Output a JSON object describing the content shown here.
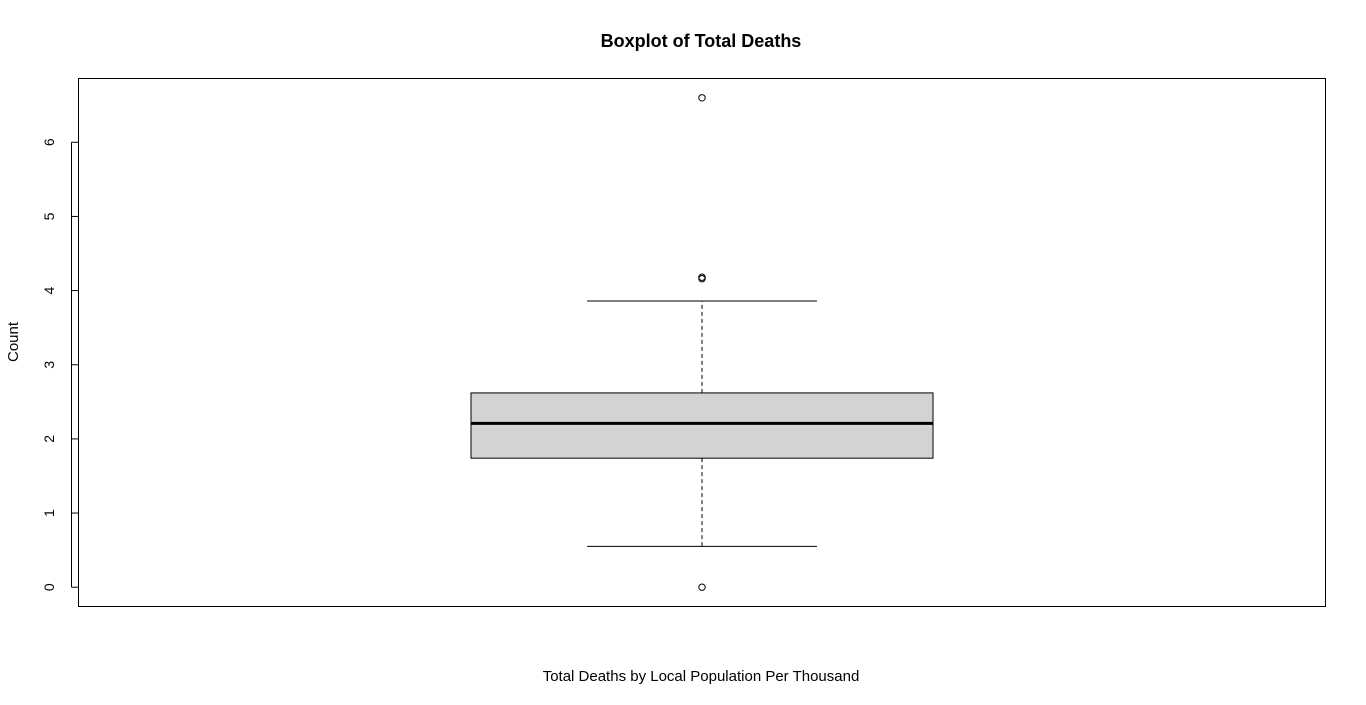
{
  "chart_data": {
    "type": "boxplot",
    "title": "Boxplot of Total Deaths",
    "xlabel": "Total Deaths by Local Population Per Thousand",
    "ylabel": "Count",
    "ylim": [
      -0.26,
      6.86
    ],
    "yticks": [
      0,
      1,
      2,
      3,
      4,
      5,
      6
    ],
    "ytick_labels": [
      "0",
      "1",
      "2",
      "3",
      "4",
      "5",
      "6"
    ],
    "grid": false,
    "legend": "none",
    "box": {
      "whisker_low": 0.55,
      "q1": 1.74,
      "median": 2.21,
      "q3": 2.62,
      "whisker_high": 3.86,
      "outliers": [
        0.0,
        4.16,
        4.18,
        6.6
      ]
    },
    "colors": {
      "box_fill": "#d3d3d3",
      "line": "#000000",
      "background": "#ffffff"
    }
  }
}
